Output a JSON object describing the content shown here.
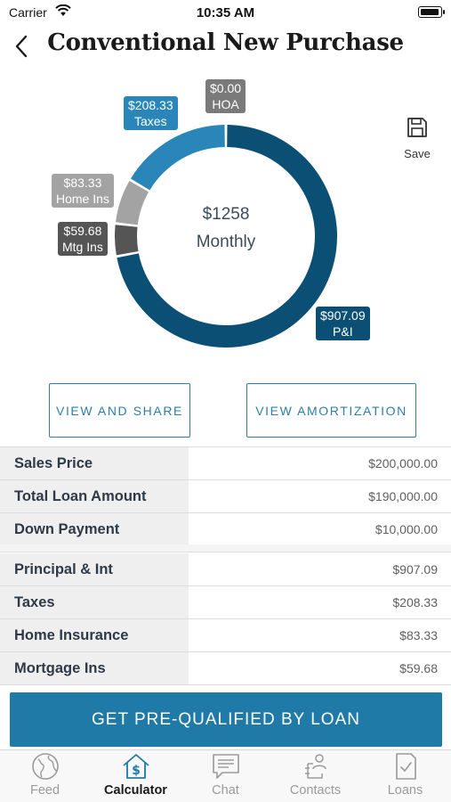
{
  "status_bar": {
    "carrier": "Carrier",
    "time": "10:35 AM",
    "battery_percent": 95
  },
  "header": {
    "title": "Conventional New Purchase",
    "back_icon": "chevron-left-icon"
  },
  "save": {
    "label": "Save",
    "icon": "floppy-disk-icon"
  },
  "chart": {
    "total": "$1258",
    "period": "Monthly",
    "slices": [
      {
        "name": "P&I",
        "amount": "$907.09",
        "label": "P&I",
        "value": 907.09,
        "color": "#0b4f74"
      },
      {
        "name": "Mtg Ins",
        "amount": "$59.68",
        "label": "Mtg Ins",
        "value": 59.68,
        "color": "#555555"
      },
      {
        "name": "Home Ins",
        "amount": "$83.33",
        "label": "Home Ins",
        "value": 83.33,
        "color": "#a3a3a3"
      },
      {
        "name": "Taxes",
        "amount": "$208.33",
        "label": "Taxes",
        "value": 208.33,
        "color": "#2a86b8"
      },
      {
        "name": "HOA",
        "amount": "$0.00",
        "label": "HOA",
        "value": 0,
        "color": "#7a7a7a"
      }
    ]
  },
  "actions": {
    "view_share": "VIEW AND SHARE",
    "view_amortization": "VIEW AMORTIZATION"
  },
  "loan_summary": [
    {
      "label": "Sales Price",
      "value": "$200,000.00"
    },
    {
      "label": "Total Loan Amount",
      "value": "$190,000.00"
    },
    {
      "label": "Down Payment",
      "value": "$10,000.00"
    }
  ],
  "payment_breakdown": [
    {
      "label": "Principal & Int",
      "value": "$907.09"
    },
    {
      "label": "Taxes",
      "value": "$208.33"
    },
    {
      "label": "Home Insurance",
      "value": "$83.33"
    },
    {
      "label": "Mortgage Ins",
      "value": "$59.68"
    }
  ],
  "cta": {
    "label": "GET PRE-QUALIFIED BY LOAN"
  },
  "tabs": [
    {
      "label": "Feed",
      "icon": "globe-icon",
      "active": false
    },
    {
      "label": "Calculator",
      "icon": "house-dollar-icon",
      "active": true
    },
    {
      "label": "Chat",
      "icon": "chat-bubble-icon",
      "active": false
    },
    {
      "label": "Contacts",
      "icon": "contacts-icon",
      "active": false
    },
    {
      "label": "Loans",
      "icon": "document-check-icon",
      "active": false
    }
  ]
}
